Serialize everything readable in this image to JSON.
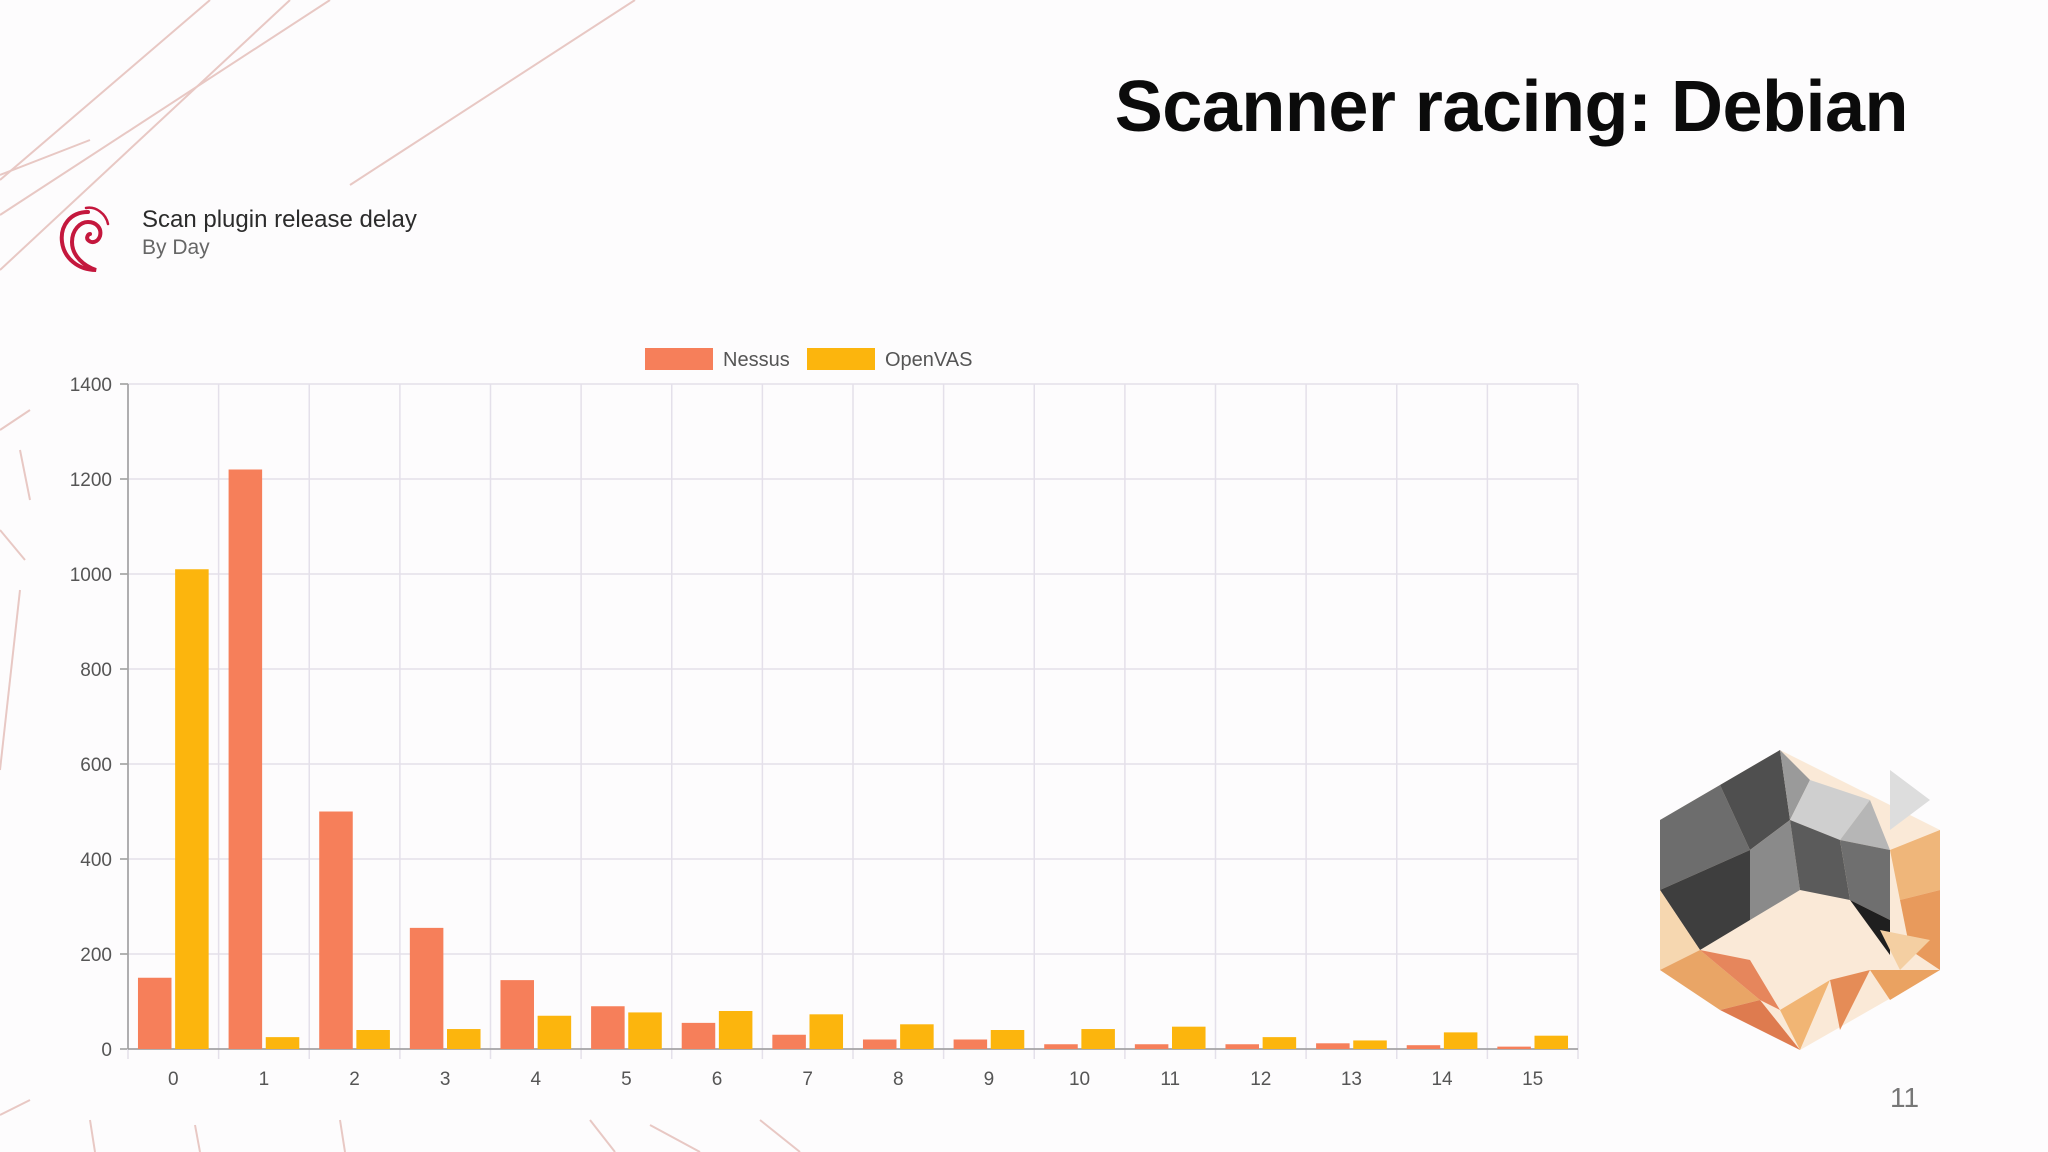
{
  "slide": {
    "title": "Scanner racing: Debian",
    "page_number": "11"
  },
  "chart_header": {
    "title": "Scan plugin release delay",
    "subtitle": "By Day",
    "logo_icon": "debian-swirl-icon"
  },
  "colors": {
    "nessus": "#f67f5a",
    "openvas": "#fcb50d",
    "grid": "#e4e0ea",
    "axis": "#999999",
    "tick_text": "#555555"
  },
  "chart_data": {
    "type": "bar",
    "title": "Scan plugin release delay",
    "subtitle": "By Day",
    "categories": [
      "0",
      "1",
      "2",
      "3",
      "4",
      "5",
      "6",
      "7",
      "8",
      "9",
      "10",
      "11",
      "12",
      "13",
      "14",
      "15"
    ],
    "series": [
      {
        "name": "Nessus",
        "color": "#f67f5a",
        "values": [
          150,
          1220,
          500,
          255,
          145,
          90,
          55,
          30,
          20,
          20,
          10,
          10,
          10,
          12,
          8,
          5
        ]
      },
      {
        "name": "OpenVAS",
        "color": "#fcb50d",
        "values": [
          1010,
          25,
          40,
          42,
          70,
          77,
          80,
          73,
          52,
          40,
          42,
          47,
          25,
          18,
          35,
          28
        ]
      }
    ],
    "ylim": [
      0,
      1400
    ],
    "yticks": [
      0,
      200,
      400,
      600,
      800,
      1000,
      1200,
      1400
    ],
    "xlabel": "",
    "ylabel": "",
    "legend_position": "top-center",
    "grid": true
  }
}
